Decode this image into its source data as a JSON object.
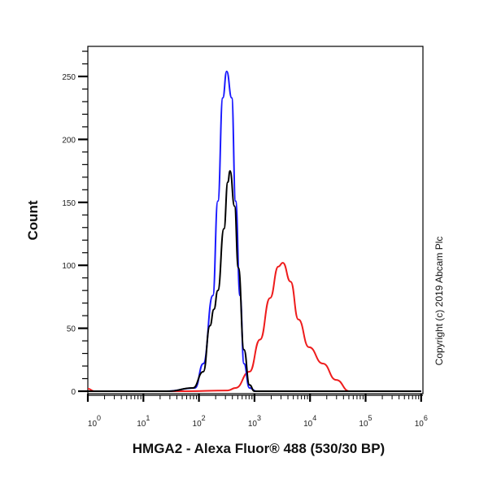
{
  "chart_data": {
    "type": "line",
    "title": "",
    "xlabel": "HMGA2 - Alexa Fluor® 488 (530/30 BP)",
    "ylabel": "Count",
    "x_scale": "log",
    "xlim": [
      1,
      1000000
    ],
    "ylim": [
      0,
      275
    ],
    "grid": false,
    "legend": "none",
    "x_ticks": [
      {
        "base": "10",
        "exp": "0",
        "value": 1
      },
      {
        "base": "10",
        "exp": "1",
        "value": 10
      },
      {
        "base": "10",
        "exp": "2",
        "value": 100
      },
      {
        "base": "10",
        "exp": "3",
        "value": 1000
      },
      {
        "base": "10",
        "exp": "4",
        "value": 10000
      },
      {
        "base": "10",
        "exp": "5",
        "value": 100000
      },
      {
        "base": "10",
        "exp": "6",
        "value": 1000000
      }
    ],
    "y_ticks": [
      "0",
      "50",
      "100",
      "150",
      "200",
      "250"
    ],
    "series": [
      {
        "color": "#1a1aff",
        "x": [
          1,
          26,
          85,
          120,
          178,
          219,
          269,
          316,
          389,
          457,
          550,
          646,
          813,
          1072,
          1000000
        ],
        "y": [
          0,
          0,
          2.6,
          22,
          76,
          151,
          233,
          254,
          233,
          151,
          76,
          22,
          2.6,
          0,
          0
        ]
      },
      {
        "color": "#000000",
        "x": [
          1,
          28,
          78,
          120,
          158,
          186,
          219,
          282,
          331,
          363,
          437,
          513,
          646,
          813,
          1000,
          1000000
        ],
        "y": [
          0,
          0,
          2.6,
          15.5,
          52,
          65,
          80,
          129,
          166,
          175,
          147,
          98,
          33,
          5,
          0,
          0
        ]
      },
      {
        "color": "#ee1c1c",
        "x": [
          1,
          1.3,
          62,
          331,
          457,
          813,
          1259,
          1905,
          2692,
          3236,
          4467,
          6166,
          9550,
          16982,
          29512,
          51286,
          1000000
        ],
        "y": [
          2,
          0,
          0,
          0.6,
          2.6,
          15.5,
          41,
          74,
          99,
          102,
          87,
          57,
          35,
          22,
          9,
          0,
          0
        ]
      }
    ]
  },
  "copyright": "Copyright (c) 2019 Abcam Plc"
}
